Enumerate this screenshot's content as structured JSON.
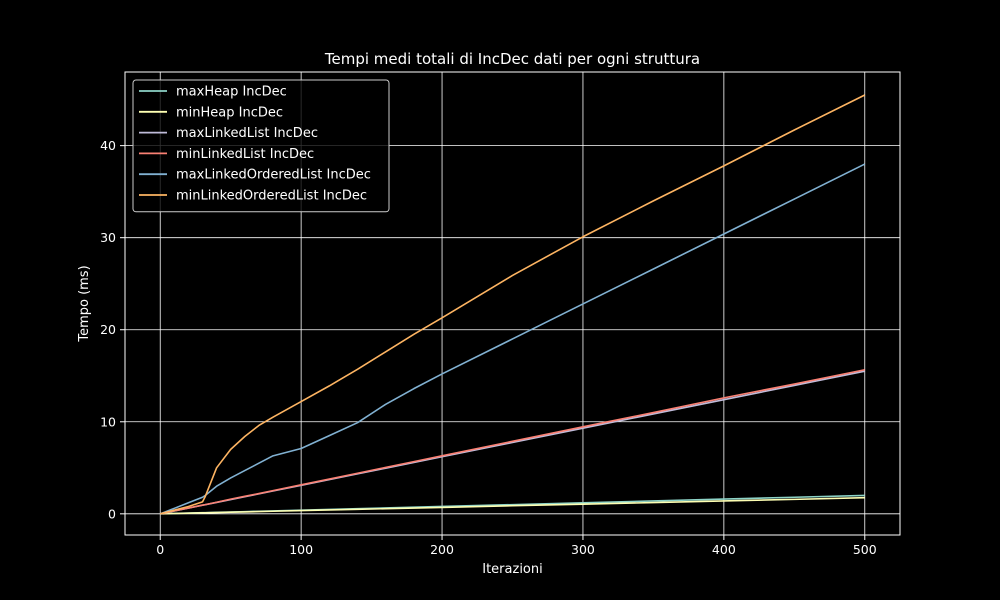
{
  "chart_data": {
    "type": "line",
    "title": "Tempi medi totali di IncDec dati per ogni struttura",
    "xlabel": "Iterazioni",
    "ylabel": "Tempo (ms)",
    "xlim": [
      -25,
      525
    ],
    "ylim": [
      -2.3,
      48.0
    ],
    "xticks": [
      0,
      100,
      200,
      300,
      400,
      500
    ],
    "yticks": [
      0,
      10,
      20,
      30,
      40
    ],
    "grid": true,
    "legend_position": "upper-left",
    "colors": {
      "background": "#000000",
      "foreground": "#ffffff",
      "grid": "#ffffff"
    },
    "x": [
      0,
      10,
      20,
      30,
      32,
      40,
      50,
      60,
      70,
      80,
      100,
      120,
      140,
      160,
      180,
      200,
      250,
      300,
      350,
      400,
      450,
      500
    ],
    "series": [
      {
        "name": "maxHeap IncDec",
        "color": "#8dd3c7",
        "values": [
          0.0,
          0.04,
          0.08,
          0.12,
          0.13,
          0.16,
          0.2,
          0.24,
          0.28,
          0.32,
          0.4,
          0.48,
          0.56,
          0.64,
          0.72,
          0.8,
          1.0,
          1.2,
          1.4,
          1.6,
          1.8,
          2.0
        ]
      },
      {
        "name": "minHeap IncDec",
        "color": "#feffb3",
        "values": [
          0.0,
          0.035,
          0.07,
          0.105,
          0.11,
          0.14,
          0.175,
          0.21,
          0.245,
          0.28,
          0.35,
          0.42,
          0.49,
          0.56,
          0.63,
          0.7,
          0.88,
          1.05,
          1.22,
          1.4,
          1.57,
          1.75
        ]
      },
      {
        "name": "maxLinkedList IncDec",
        "color": "#bfbbd9",
        "values": [
          0.0,
          0.31,
          0.62,
          0.93,
          0.99,
          1.24,
          1.55,
          1.86,
          2.17,
          2.48,
          3.1,
          3.72,
          4.34,
          4.96,
          5.58,
          6.2,
          7.75,
          9.3,
          10.85,
          12.4,
          13.95,
          15.5
        ]
      },
      {
        "name": "minLinkedList IncDec",
        "color": "#fa8174",
        "values": [
          0.0,
          0.32,
          0.63,
          0.95,
          1.0,
          1.26,
          1.6,
          1.9,
          2.2,
          2.52,
          3.15,
          3.78,
          4.41,
          5.04,
          5.67,
          6.3,
          7.88,
          9.45,
          11.0,
          12.6,
          14.1,
          15.65
        ]
      },
      {
        "name": "maxLinkedOrderedList IncDec",
        "color": "#81b1d2",
        "values": [
          0.0,
          0.6,
          1.2,
          1.8,
          2.0,
          3.0,
          3.9,
          4.7,
          5.5,
          6.3,
          7.1,
          8.5,
          9.9,
          11.9,
          13.6,
          15.2,
          19.0,
          22.8,
          26.6,
          30.4,
          34.2,
          38.0
        ]
      },
      {
        "name": "minLinkedOrderedList IncDec",
        "color": "#fdb462",
        "values": [
          0.0,
          0.4,
          0.8,
          1.3,
          1.9,
          5.0,
          7.0,
          8.4,
          9.6,
          10.5,
          12.2,
          13.9,
          15.7,
          17.6,
          19.5,
          21.3,
          25.9,
          30.1,
          34.0,
          37.8,
          41.7,
          45.5
        ]
      }
    ]
  }
}
